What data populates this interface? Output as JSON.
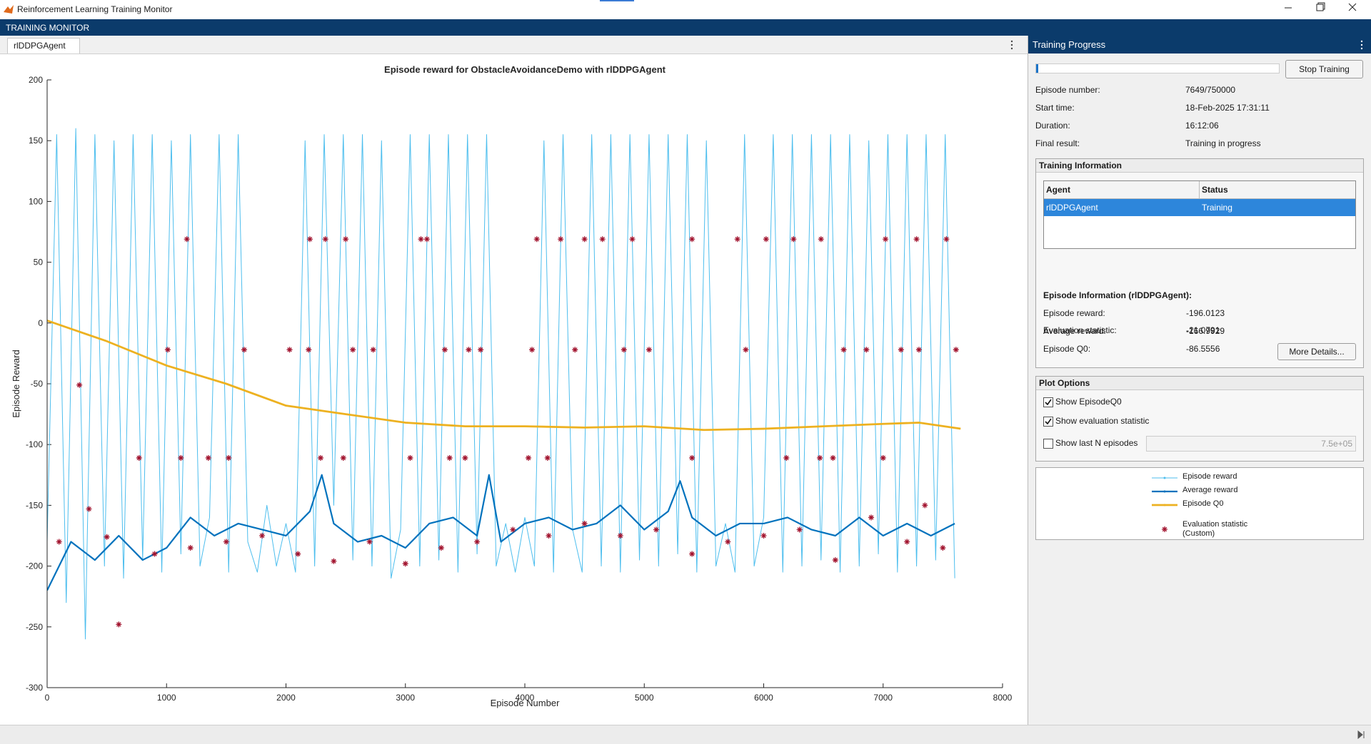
{
  "window": {
    "title": "Reinforcement Learning Training Monitor"
  },
  "toolstrip": {
    "label": "TRAINING MONITOR"
  },
  "tab": {
    "label": "rlDDPGAgent"
  },
  "chart_data": {
    "type": "line",
    "title": "Episode reward for ObstacleAvoidanceDemo with rlDDPGAgent",
    "xlabel": "Episode Number",
    "ylabel": "Episode Reward",
    "xlim": [
      0,
      8000
    ],
    "ylim": [
      -300,
      200
    ],
    "xticks": [
      0,
      1000,
      2000,
      3000,
      4000,
      5000,
      6000,
      7000,
      8000
    ],
    "yticks": [
      -300,
      -250,
      -200,
      -150,
      -100,
      -50,
      0,
      50,
      100,
      150,
      200
    ],
    "grid": false,
    "series": [
      {
        "name": "Episode reward",
        "color": "#4DBEEE",
        "line": true,
        "marker": ".",
        "x": [
          0,
          80,
          160,
          240,
          320,
          400,
          480,
          560,
          640,
          720,
          800,
          880,
          960,
          1040,
          1120,
          1200,
          1280,
          1360,
          1440,
          1520,
          1600,
          1680,
          1760,
          1840,
          1920,
          2000,
          2080,
          2160,
          2240,
          2320,
          2400,
          2480,
          2560,
          2640,
          2720,
          2800,
          2880,
          2960,
          3040,
          3120,
          3200,
          3280,
          3360,
          3440,
          3520,
          3600,
          3680,
          3760,
          3840,
          3920,
          4000,
          4080,
          4160,
          4240,
          4320,
          4400,
          4480,
          4560,
          4640,
          4720,
          4800,
          4880,
          4960,
          5040,
          5120,
          5200,
          5280,
          5360,
          5440,
          5520,
          5600,
          5680,
          5760,
          5840,
          5920,
          6000,
          6080,
          6160,
          6240,
          6320,
          6400,
          6480,
          6560,
          6640,
          6720,
          6800,
          6880,
          6960,
          7040,
          7120,
          7200,
          7280,
          7360,
          7440,
          7520,
          7600
        ],
        "values": [
          -180,
          155,
          -230,
          160,
          -260,
          155,
          -200,
          150,
          -210,
          155,
          -195,
          155,
          -205,
          150,
          -190,
          155,
          -200,
          -160,
          155,
          -205,
          155,
          -180,
          -205,
          -150,
          -200,
          -165,
          -205,
          150,
          -200,
          155,
          -150,
          155,
          -195,
          155,
          -200,
          150,
          -210,
          -170,
          155,
          -200,
          155,
          -195,
          155,
          -205,
          155,
          -190,
          155,
          -200,
          -165,
          -205,
          -160,
          -200,
          150,
          -205,
          155,
          -170,
          -205,
          155,
          -200,
          155,
          -205,
          155,
          -195,
          155,
          -200,
          155,
          -190,
          155,
          -205,
          150,
          -200,
          -165,
          -205,
          155,
          -200,
          -160,
          155,
          -205,
          155,
          -200,
          155,
          -195,
          155,
          -205,
          155,
          -200,
          150,
          -190,
          155,
          -205,
          155,
          -200,
          155,
          -195,
          155,
          -210
        ]
      },
      {
        "name": "Average reward",
        "color": "#0072BD",
        "line": true,
        "marker": ".",
        "x": [
          0,
          200,
          400,
          600,
          800,
          1000,
          1200,
          1400,
          1600,
          1800,
          2000,
          2200,
          2300,
          2400,
          2600,
          2800,
          3000,
          3200,
          3400,
          3600,
          3700,
          3800,
          4000,
          4200,
          4400,
          4600,
          4800,
          5000,
          5200,
          5300,
          5400,
          5600,
          5800,
          6000,
          6200,
          6400,
          6600,
          6800,
          7000,
          7200,
          7400,
          7600
        ],
        "values": [
          -220,
          -180,
          -195,
          -175,
          -195,
          -185,
          -160,
          -175,
          -165,
          -170,
          -175,
          -155,
          -125,
          -165,
          -180,
          -175,
          -185,
          -165,
          -160,
          -175,
          -125,
          -180,
          -165,
          -160,
          -170,
          -165,
          -150,
          -170,
          -155,
          -130,
          -160,
          -175,
          -165,
          -165,
          -160,
          -170,
          -175,
          -160,
          -175,
          -165,
          -175,
          -165
        ]
      },
      {
        "name": "Episode Q0",
        "color": "#EDB120",
        "line": true,
        "marker": ".",
        "x": [
          0,
          500,
          1000,
          1500,
          2000,
          2500,
          3000,
          3500,
          4000,
          4500,
          5000,
          5500,
          6000,
          6500,
          7000,
          7300,
          7649
        ],
        "values": [
          2,
          -15,
          -35,
          -50,
          -68,
          -75,
          -82,
          -85,
          -85,
          -86,
          -85,
          -88,
          -87,
          -85,
          -83,
          -82,
          -87
        ]
      },
      {
        "name": "Evaluation statistic (Custom)",
        "color": "#A2142F",
        "line": false,
        "marker": "*",
        "x": [
          270,
          1170,
          2200,
          2330,
          2500,
          3130,
          3180,
          4100,
          4300,
          4500,
          4650,
          4900,
          5400,
          5780,
          6020,
          6250,
          6480,
          7020,
          7280,
          7530,
          1010,
          1650,
          2030,
          2190,
          2560,
          2730,
          3330,
          3530,
          3630,
          4060,
          4420,
          4830,
          5040,
          5850,
          6670,
          6860,
          7150,
          7300,
          7610,
          770,
          1120,
          1350,
          1520,
          2290,
          2480,
          3040,
          3370,
          3500,
          4030,
          4190,
          5400,
          6190,
          6470,
          6580,
          7000,
          350,
          600,
          100,
          500,
          900,
          1200,
          1500,
          1800,
          2100,
          2400,
          2700,
          3000,
          3300,
          3600,
          3900,
          4200,
          4500,
          4800,
          5100,
          5400,
          5700,
          6000,
          6300,
          6600,
          6900,
          7200,
          7350,
          7500
        ],
        "values": [
          -51,
          69,
          69,
          69,
          69,
          69,
          69,
          69,
          69,
          69,
          69,
          69,
          69,
          69,
          69,
          69,
          69,
          69,
          69,
          69,
          -22,
          -22,
          -22,
          -22,
          -22,
          -22,
          -22,
          -22,
          -22,
          -22,
          -22,
          -22,
          -22,
          -22,
          -22,
          -22,
          -22,
          -22,
          -22,
          -111,
          -111,
          -111,
          -111,
          -111,
          -111,
          -111,
          -111,
          -111,
          -111,
          -111,
          -111,
          -111,
          -111,
          -111,
          -111,
          -153,
          -248,
          -180,
          -176,
          -190,
          -185,
          -180,
          -175,
          -190,
          -196,
          -180,
          -198,
          -185,
          -180,
          -170,
          -175,
          -165,
          -175,
          -170,
          -190,
          -180,
          -175,
          -170,
          -195,
          -160,
          -180,
          -150,
          -185
        ]
      }
    ]
  },
  "progress": {
    "title": "Training Progress",
    "button": "Stop Training",
    "fields": [
      {
        "label": "Episode number:",
        "value": "7649/750000"
      },
      {
        "label": "Start time:",
        "value": "18-Feb-2025 17:31:11"
      },
      {
        "label": "Duration:",
        "value": "16:12:06"
      },
      {
        "label": "Final result:",
        "value": "Training in progress"
      }
    ]
  },
  "training_info": {
    "title": "Training Information",
    "columns": [
      "Agent",
      "Status"
    ],
    "rows": [
      [
        "rlDDPGAgent",
        "Training"
      ]
    ]
  },
  "episode_info": {
    "title": "Episode Information (rlDDPGAgent):",
    "fields": [
      {
        "label": "Episode reward:",
        "value": "-196.0123"
      },
      {
        "label": "Average reward:",
        "value": "-166.9929"
      },
      {
        "label": "Episode Q0:",
        "value": "-86.5556"
      },
      {
        "label": "Evaluation statistic:",
        "value": "-21.0791"
      }
    ],
    "button": "More Details..."
  },
  "plot_options": {
    "title": "Plot Options",
    "options": [
      {
        "label": "Show EpisodeQ0",
        "checked": true
      },
      {
        "label": "Show evaluation statistic",
        "checked": true
      },
      {
        "label": "Show last N episodes",
        "checked": false
      }
    ],
    "last_n": "7.5e+05"
  }
}
